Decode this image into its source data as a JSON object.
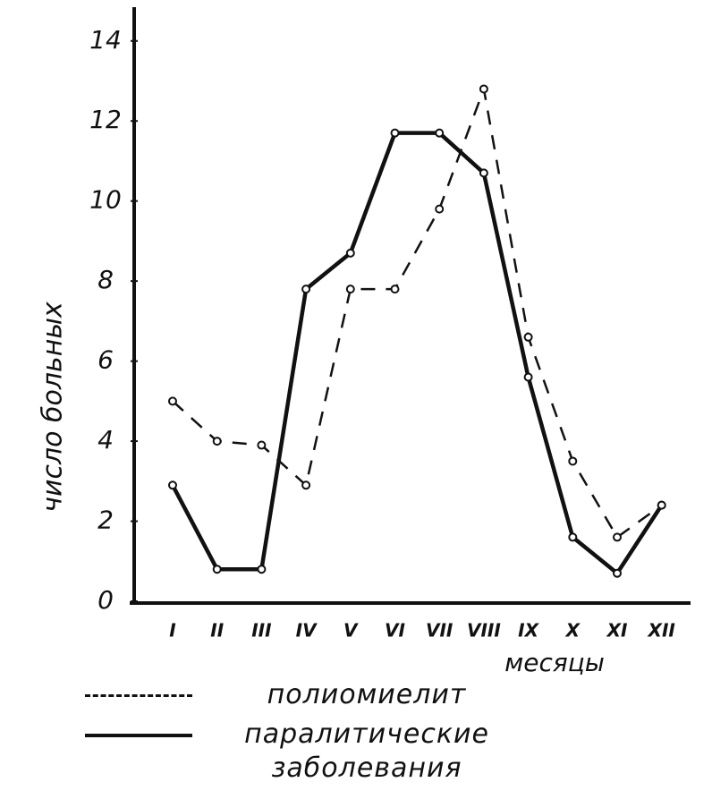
{
  "chart_data": {
    "type": "line",
    "y_label": "число больных",
    "x_label": "месяцы",
    "categories": [
      "I",
      "II",
      "III",
      "IV",
      "V",
      "VI",
      "VII",
      "VIII",
      "IX",
      "X",
      "XI",
      "XII"
    ],
    "series": [
      {
        "name": "полиомиелит",
        "color": "#111111",
        "dash": true,
        "values": [
          5,
          4,
          3.9,
          2.9,
          7.8,
          7.8,
          9.8,
          12.8,
          6.6,
          3.5,
          1.6,
          2.4
        ]
      },
      {
        "name": "паралитические заболевания",
        "color": "#111111",
        "dash": false,
        "values": [
          2.9,
          0.8,
          0.8,
          7.8,
          8.7,
          11.7,
          11.7,
          10.7,
          5.6,
          1.6,
          0.7,
          2.4
        ]
      }
    ],
    "ylim": [
      0,
      14.8
    ],
    "yticks": [
      0,
      2,
      4,
      6,
      8,
      10,
      12,
      14
    ],
    "grid": false
  }
}
